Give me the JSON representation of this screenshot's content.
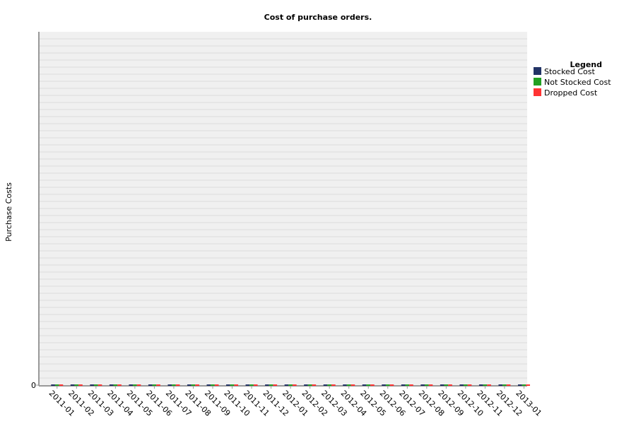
{
  "chart_data": {
    "type": "bar",
    "title": "Cost of purchase orders.",
    "xlabel": "",
    "ylabel": "Purchase Costs",
    "y_ticks": [
      "0"
    ],
    "ylim": [
      0,
      1
    ],
    "grid": true,
    "legend": {
      "title": "Legend",
      "placement": "right"
    },
    "categories": [
      "2011-01",
      "2011-02",
      "2011-03",
      "2011-04",
      "2011-05",
      "2011-06",
      "2011-07",
      "2011-08",
      "2011-09",
      "2011-10",
      "2011-11",
      "2011-12",
      "2012-01",
      "2012-02",
      "2012-03",
      "2012-04",
      "2012-05",
      "2012-06",
      "2012-07",
      "2012-08",
      "2012-09",
      "2012-10",
      "2012-11",
      "2012-12",
      "2013-01"
    ],
    "series": [
      {
        "name": "Stocked Cost",
        "color": "#223366",
        "values": [
          0,
          0,
          0,
          0,
          0,
          0,
          0,
          0,
          0,
          0,
          0,
          0,
          0,
          0,
          0,
          0,
          0,
          0,
          0,
          0,
          0,
          0,
          0,
          0,
          0
        ]
      },
      {
        "name": "Not Stocked Cost",
        "color": "#22a022",
        "values": [
          0,
          0,
          0,
          0,
          0,
          0,
          0,
          0,
          0,
          0,
          0,
          0,
          0,
          0,
          0,
          0,
          0,
          0,
          0,
          0,
          0,
          0,
          0,
          0,
          0
        ]
      },
      {
        "name": "Dropped Cost",
        "color": "#ff3333",
        "values": [
          0,
          0,
          0,
          0,
          0,
          0,
          0,
          0,
          0,
          0,
          0,
          0,
          0,
          0,
          0,
          0,
          0,
          0,
          0,
          0,
          0,
          0,
          0,
          0,
          0
        ]
      }
    ]
  }
}
